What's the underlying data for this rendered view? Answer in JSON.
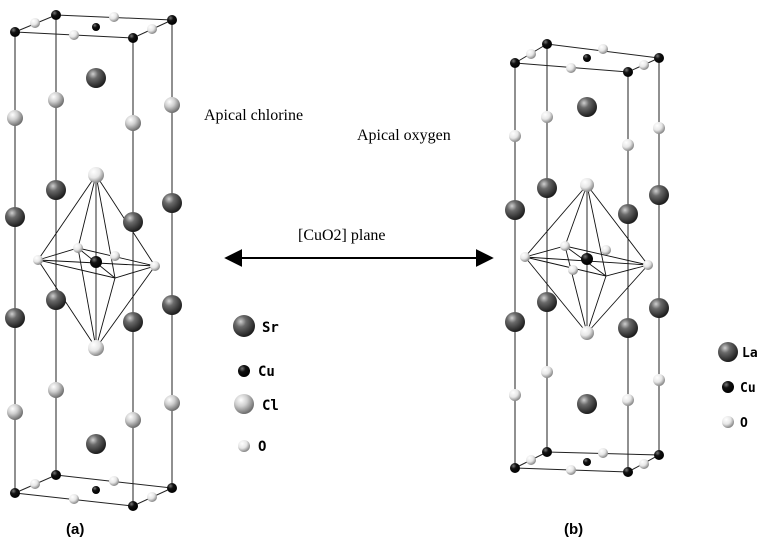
{
  "labels": {
    "apical_chlorine": "Apical chlorine",
    "apical_oxygen": "Apical oxygen",
    "plane": "[CuO2] plane",
    "panel_a": "(a)",
    "panel_b": "(b)"
  },
  "legend_a": [
    {
      "label": "Sr",
      "atom": "large-dark-gray-sphere"
    },
    {
      "label": "Cu",
      "atom": "small-black-sphere"
    },
    {
      "label": "Cl",
      "atom": "large-light-gray-sphere"
    },
    {
      "label": "O",
      "atom": "small-white-sphere"
    }
  ],
  "legend_b": [
    {
      "label": "La",
      "atom": "large-dark-gray-sphere"
    },
    {
      "label": "Cu",
      "atom": "small-black-sphere"
    },
    {
      "label": "O",
      "atom": "small-white-sphere"
    }
  ],
  "colors": {
    "sr_la": "#555555",
    "cl": "#bdbdbd",
    "cu": "#000000",
    "o": "#eeeeee"
  }
}
